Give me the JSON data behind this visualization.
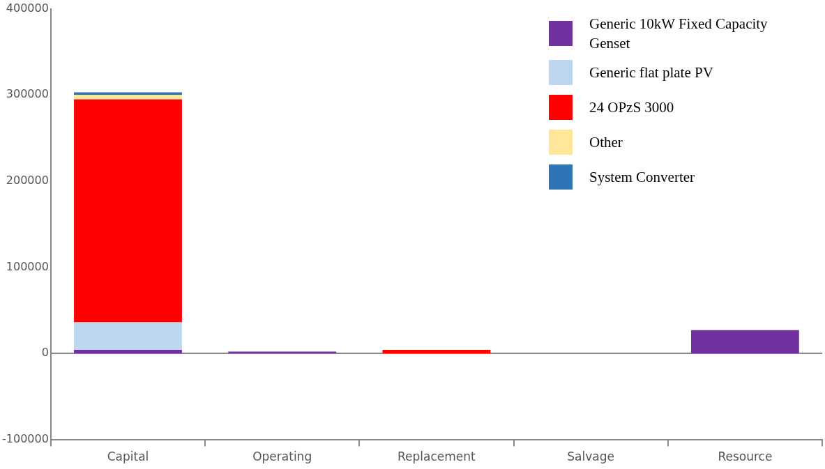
{
  "chart_data": {
    "type": "bar",
    "stacked": true,
    "categories": [
      "Capital",
      "Operating",
      "Replacement",
      "Salvage",
      "Resource"
    ],
    "series": [
      {
        "name": "Generic 10kW Fixed Capacity Genset",
        "color": "#7030a0",
        "values": [
          4000,
          2000,
          0,
          0,
          27000
        ]
      },
      {
        "name": "Generic flat plate PV",
        "color": "#bdd7ee",
        "values": [
          32000,
          0,
          0,
          0,
          0
        ]
      },
      {
        "name": "24 OPzS 3000",
        "color": "#ff0000",
        "values": [
          259000,
          0,
          4000,
          0,
          0
        ]
      },
      {
        "name": "Other",
        "color": "#ffe699",
        "values": [
          5000,
          0,
          0,
          0,
          0
        ]
      },
      {
        "name": "System Converter",
        "color": "#2e75b6",
        "values": [
          3000,
          0,
          0,
          0,
          0
        ]
      }
    ],
    "ylim": [
      -100000,
      400000
    ],
    "yticks": [
      -100000,
      0,
      100000,
      200000,
      300000,
      400000
    ],
    "grid": false,
    "ref_lines": [
      {
        "axis": "y",
        "value": 0,
        "color": "#888888"
      }
    ],
    "legend": "top right"
  }
}
